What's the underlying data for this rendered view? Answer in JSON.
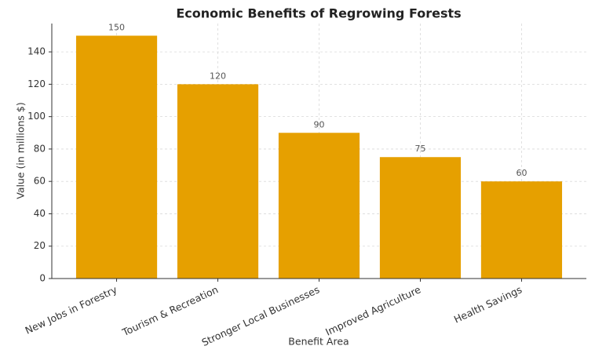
{
  "chart_data": {
    "type": "bar",
    "title": "Economic Benefits of Regrowing Forests",
    "xlabel": "Benefit Area",
    "ylabel": "Value (in millions $)",
    "categories": [
      "New Jobs in Forestry",
      "Tourism & Recreation",
      "Stronger Local Businesses",
      "Improved Agriculture",
      "Health Savings"
    ],
    "values": [
      150,
      120,
      90,
      75,
      60
    ],
    "color": "#e6a000",
    "ylim": [
      0,
      157.5
    ],
    "yticks": [
      0,
      20,
      40,
      60,
      80,
      100,
      120,
      140
    ],
    "grid": true
  }
}
